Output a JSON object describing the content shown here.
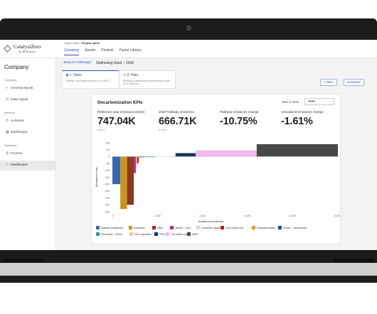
{
  "app": {
    "logo_title": "CatalystZero",
    "logo_sub": "by McKinsey",
    "breadcrumb": [
      "Client name",
      "Project name"
    ],
    "nav_tabs": [
      "Company",
      "Assets",
      "Product",
      "Factor Library"
    ],
    "active_tab": "Company"
  },
  "sidebar": {
    "title": "Company",
    "groups": [
      {
        "label": "Company",
        "items": [
          {
            "label": "General Inputs",
            "icon": "list-icon"
          },
          {
            "label": "Data Inputs",
            "icon": "database-icon"
          }
        ]
      },
      {
        "label": "Baseline",
        "items": [
          {
            "label": "Activities",
            "icon": "activity-icon"
          },
          {
            "label": "Dashboard",
            "icon": "dashboard-icon"
          }
        ]
      },
      {
        "label": "Pathways",
        "items": [
          {
            "label": "Factors",
            "icon": "factors-icon"
          },
          {
            "label": "Dashboard",
            "icon": "chart-icon",
            "active": true
          }
        ]
      }
    ]
  },
  "subheader": {
    "back": "Back to Pathways",
    "title": "Optimizing Steel – 2030",
    "steps": [
      {
        "label": "1. Value",
        "desc": "Identify cost-effective levers on a MACC"
      },
      {
        "label": "2. Plan",
        "desc": "Develop a sequenced implementation plan for a Pathway"
      }
    ],
    "filters_label": "Filters",
    "download_label": "Download"
  },
  "kpis": {
    "title": "Decarbonization KPIs",
    "year_label": "Year in view",
    "year_value": "2030",
    "items": [
      {
        "label": "Reference year emissions (2023)",
        "value": "747.04K",
        "unit": "tCO2e"
      },
      {
        "label": "2030 Pathway emissions",
        "value": "666.71K",
        "unit": "tCO2e"
      },
      {
        "label": "Pathway emissions change",
        "value": "-10.75%",
        "unit": ""
      },
      {
        "label": "Annualized emissions change",
        "value": "-1.61%",
        "unit": ""
      }
    ]
  },
  "chart_data": {
    "type": "bar",
    "subtype": "marginal-abatement-cost-curve",
    "xlabel": "Abatement potential",
    "ylabel": "Abatement cost",
    "xlim": [
      0,
      10000
    ],
    "ylim": [
      -400,
      100
    ],
    "x_ticks": [
      "0",
      "2,000",
      "4,000",
      "6,000",
      "8,000",
      "10,000"
    ],
    "y_ticks": [
      "100",
      "50",
      "0",
      "-50",
      "-100",
      "-150",
      "-200",
      "-250",
      "-300",
      "-350",
      "-400"
    ],
    "bars": [
      {
        "name": "Natural Abatement",
        "color": "#3a67a8",
        "x_start": 0,
        "width": 350,
        "value": -200
      },
      {
        "name": "Industrial",
        "color": "#c8961e",
        "x_start": 350,
        "width": 300,
        "value": -380
      },
      {
        "name": "NMC",
        "color": "#8c3a22",
        "x_start": 650,
        "width": 300,
        "value": -350
      },
      {
        "name": "Textile – FAC",
        "color": "#c2277a",
        "x_start": 950,
        "width": 90,
        "value": -120
      },
      {
        "name": "Container glass",
        "color": "#f0c8e8",
        "x_start": 1040,
        "width": 50,
        "value": -90
      },
      {
        "name": "Cool rolled coil",
        "color": "#b0202a",
        "x_start": 1090,
        "width": 60,
        "value": -50
      },
      {
        "name": "Polycarbonates",
        "color": "#e8a020",
        "x_start": 1150,
        "width": 50,
        "value": -40
      },
      {
        "name": "Power – Windshore",
        "color": "#1f4a88",
        "x_start": 1200,
        "width": 200,
        "value": -5
      },
      {
        "name": "Electricity – ROW",
        "color": "#19a48c",
        "x_start": 1400,
        "width": 500,
        "value": -3
      },
      {
        "name": "PMC",
        "color": "#17355e",
        "x_start": 2800,
        "width": 900,
        "value": 25
      },
      {
        "name": "Hot rolled coil",
        "color": "#f3b8ee",
        "x_start": 3700,
        "width": 2700,
        "value": 45
      },
      {
        "name": "NMC",
        "color": "#474747",
        "x_start": 6400,
        "width": 3600,
        "value": 90
      }
    ],
    "legend": [
      {
        "name": "Natural Abatement",
        "color": "#3a67a8"
      },
      {
        "name": "Industrial",
        "color": "#c8961e"
      },
      {
        "name": "NMC",
        "color": "#8c3a22"
      },
      {
        "name": "Textile – FAC",
        "color": "#c2277a"
      },
      {
        "name": "Container glass",
        "color": "#f0c8e8"
      },
      {
        "name": "Cool rolled coil",
        "color": "#b0202a"
      },
      {
        "name": "Polycarbonates",
        "color": "#e8a020"
      },
      {
        "name": "Power – Windshore",
        "color": "#1f4a88"
      },
      {
        "name": "Electricity – ROW",
        "color": "#19a48c"
      },
      {
        "name": "Film capacitor",
        "color": "#e8d090"
      },
      {
        "name": "PMC",
        "color": "#17355e"
      },
      {
        "name": "Hot rolled coil",
        "color": "#f3b8ee"
      },
      {
        "name": "NMC",
        "color": "#474747"
      }
    ],
    "grid": false
  }
}
